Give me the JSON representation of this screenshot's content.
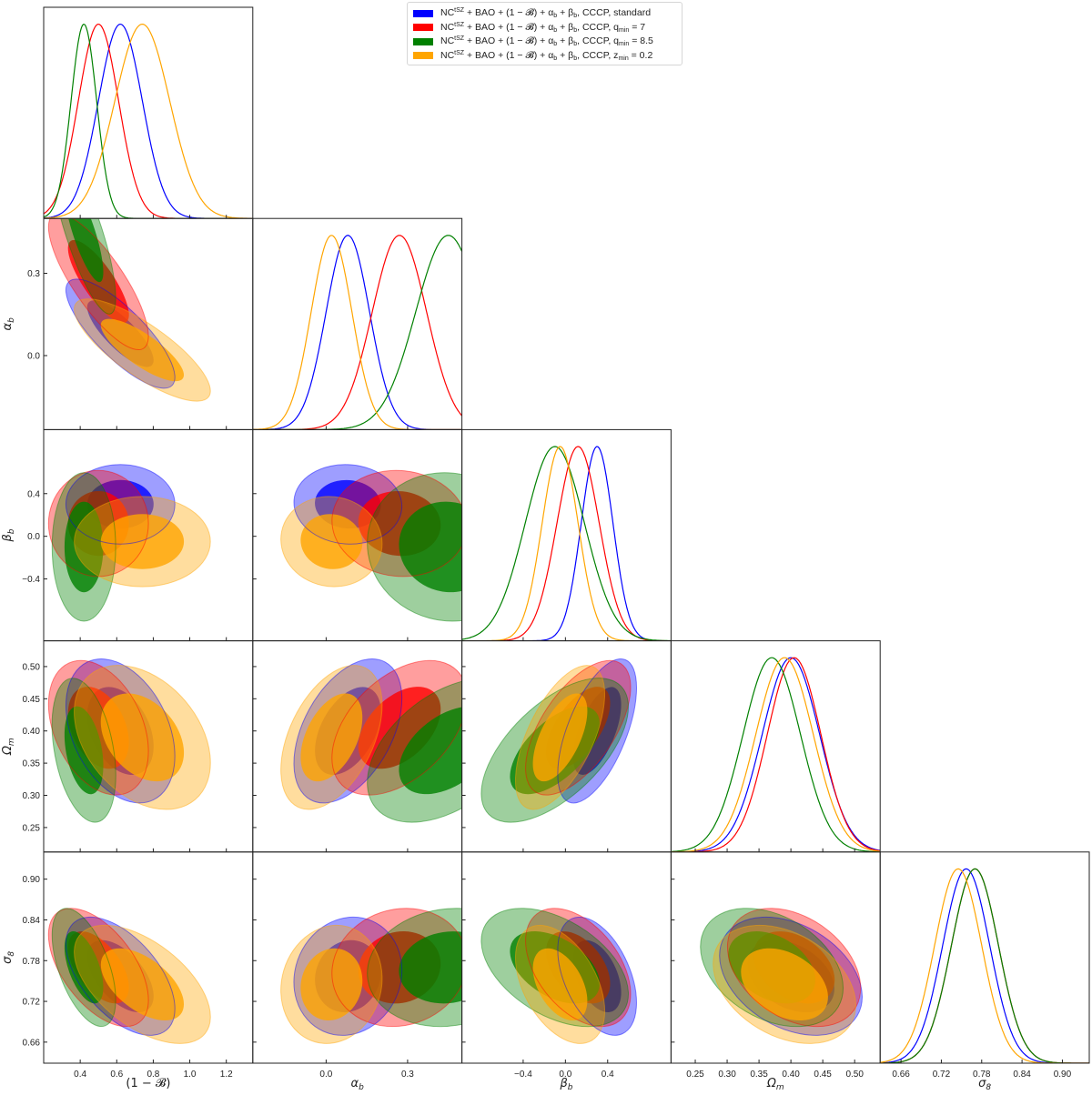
{
  "chart_data": {
    "type": "triangle-corner-plot",
    "grid": false,
    "legend_placement": "top-center",
    "params": [
      {
        "id": "B",
        "label": "(1 − 𝓑)",
        "sub": "",
        "range": [
          0.2,
          1.345
        ],
        "ticks": [
          0.4,
          0.6,
          0.8,
          1.0,
          1.2
        ],
        "tick_labels": [
          "0.4",
          "0.6",
          "0.8",
          "1.0",
          "1.2"
        ]
      },
      {
        "id": "alpha",
        "label": "α",
        "sub": "b",
        "range": [
          -0.27,
          0.5
        ],
        "ticks": [
          0.0,
          0.3
        ],
        "tick_labels": [
          "0.0",
          "0.3"
        ]
      },
      {
        "id": "beta",
        "label": "β",
        "sub": "b",
        "range": [
          -0.98,
          1.0
        ],
        "ticks": [
          -0.4,
          0.0,
          0.4
        ],
        "tick_labels": [
          "−0.4",
          "0.0",
          "0.4"
        ]
      },
      {
        "id": "Om",
        "label": "Ω",
        "sub": "m",
        "range": [
          0.212,
          0.54
        ],
        "ticks": [
          0.25,
          0.3,
          0.35,
          0.4,
          0.45,
          0.5
        ],
        "tick_labels": [
          "0.25",
          "0.30",
          "0.35",
          "0.40",
          "0.45",
          "0.50"
        ]
      },
      {
        "id": "s8",
        "label": "σ",
        "sub": "8",
        "range": [
          0.629,
          0.94
        ],
        "ticks": [
          0.66,
          0.72,
          0.78,
          0.84,
          0.9
        ],
        "tick_labels": [
          "0.66",
          "0.72",
          "0.78",
          "0.84",
          "0.90"
        ]
      }
    ],
    "correlations": {
      "B-alpha": -0.8,
      "B-beta": 0.0,
      "alpha-beta": -0.05,
      "B-Om": -0.35,
      "alpha-Om": 0.45,
      "beta-Om": 0.6,
      "B-s8": -0.55,
      "alpha-s8": 0.1,
      "beta-s8": -0.45,
      "Om-s8": -0.35
    },
    "contour_levels": [
      0.68,
      0.95
    ],
    "series": [
      {
        "key": "standard",
        "color": "#0000ff",
        "mean": {
          "B": 0.62,
          "alpha": 0.08,
          "beta": 0.3,
          "Om": 0.4,
          "s8": 0.757
        },
        "sd": {
          "B": 0.12,
          "alpha": 0.08,
          "beta": 0.15,
          "Om": 0.045,
          "s8": 0.035
        },
        "legend": [
          {
            "t": "NC"
          },
          {
            "t": "tSZ",
            "s": "sup"
          },
          {
            "t": " + BAO + (1 − 𝓑) + α"
          },
          {
            "t": "b",
            "s": "sub"
          },
          {
            "t": " + β"
          },
          {
            "t": "b",
            "s": "sub"
          },
          {
            "t": ", CCCP, standard"
          }
        ]
      },
      {
        "key": "qmin7",
        "color": "#ff0000",
        "mean": {
          "B": 0.5,
          "alpha": 0.27,
          "beta": 0.12,
          "Om": 0.405,
          "s8": 0.77
        },
        "sd": {
          "B": 0.11,
          "alpha": 0.1,
          "beta": 0.2,
          "Om": 0.042,
          "s8": 0.035
        },
        "legend": [
          {
            "t": "NC"
          },
          {
            "t": "tSZ",
            "s": "sup"
          },
          {
            "t": " + BAO + (1 − 𝓑) + α"
          },
          {
            "t": "b",
            "s": "sub"
          },
          {
            "t": " + β"
          },
          {
            "t": "b",
            "s": "sub"
          },
          {
            "t": ", CCCP, q"
          },
          {
            "t": "min",
            "s": "sub"
          },
          {
            "t": " = 7"
          }
        ]
      },
      {
        "key": "qmin8.5",
        "color": "#008000",
        "mean": {
          "B": 0.42,
          "alpha": 0.45,
          "beta": -0.1,
          "Om": 0.37,
          "s8": 0.77
        },
        "sd": {
          "B": 0.07,
          "alpha": 0.12,
          "beta": 0.28,
          "Om": 0.045,
          "s8": 0.035
        },
        "legend": [
          {
            "t": "NC"
          },
          {
            "t": "tSZ",
            "s": "sup"
          },
          {
            "t": " + BAO + (1 − 𝓑) + α"
          },
          {
            "t": "b",
            "s": "sub"
          },
          {
            "t": " + β"
          },
          {
            "t": "b",
            "s": "sub"
          },
          {
            "t": ", CCCP, q"
          },
          {
            "t": "min",
            "s": "sub"
          },
          {
            "t": " = 8.5"
          }
        ]
      },
      {
        "key": "zmin0.2",
        "color": "#ffa500",
        "mean": {
          "B": 0.74,
          "alpha": 0.02,
          "beta": -0.05,
          "Om": 0.39,
          "s8": 0.745
        },
        "sd": {
          "B": 0.15,
          "alpha": 0.075,
          "beta": 0.17,
          "Om": 0.045,
          "s8": 0.035
        },
        "legend": [
          {
            "t": "NC"
          },
          {
            "t": "tSZ",
            "s": "sup"
          },
          {
            "t": " + BAO + (1 − 𝓑) + α"
          },
          {
            "t": "b",
            "s": "sub"
          },
          {
            "t": " + β"
          },
          {
            "t": "b",
            "s": "sub"
          },
          {
            "t": ", CCCP, z"
          },
          {
            "t": "min",
            "s": "sub"
          },
          {
            "t": " = 0.2"
          }
        ]
      }
    ]
  }
}
